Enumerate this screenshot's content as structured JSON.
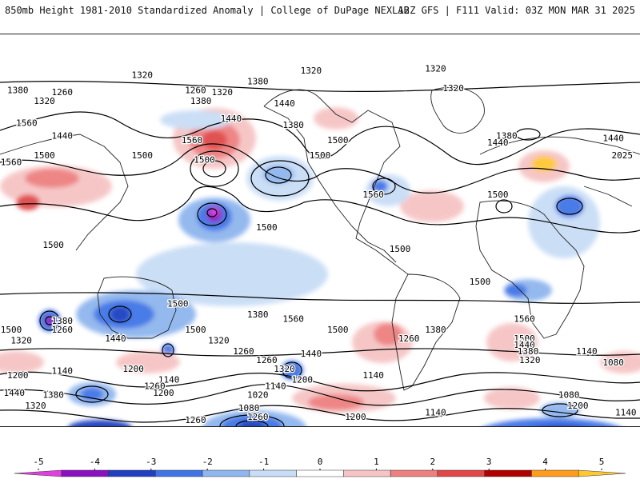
{
  "header": {
    "title_left": "850mb Height 1981-2010 Standardized Anomaly | College of DuPage NEXLAB",
    "title_right": "12Z GFS | F111 Valid: 03Z MON MAR 31 2025"
  },
  "colorbar": {
    "ticks": [
      "-5",
      "-4",
      "-3",
      "-2",
      "-1",
      "0",
      "1",
      "2",
      "3",
      "4",
      "5"
    ],
    "colors": [
      "#e040e0",
      "#8a10c0",
      "#1f3fc0",
      "#3f74e6",
      "#8fb6ee",
      "#c8ddf6",
      "#ffffff",
      "#f6c4c4",
      "#ee8080",
      "#e04848",
      "#b00000",
      "#ff9d1a",
      "#ffc830"
    ]
  },
  "contour_labels": [
    {
      "text": "1320",
      "lon": -5,
      "lat": 72
    },
    {
      "text": "1320",
      "lon": 65,
      "lat": 73
    },
    {
      "text": "1320",
      "lon": -100,
      "lat": 70
    },
    {
      "text": "1380",
      "lon": -170,
      "lat": 63
    },
    {
      "text": "1260",
      "lon": -145,
      "lat": 62
    },
    {
      "text": "1320",
      "lon": -155,
      "lat": 58
    },
    {
      "text": "1380",
      "lon": -35,
      "lat": 67
    },
    {
      "text": "1260",
      "lon": -70,
      "lat": 63
    },
    {
      "text": "1320",
      "lon": -55,
      "lat": 62
    },
    {
      "text": "1380",
      "lon": -67,
      "lat": 58
    },
    {
      "text": "1440",
      "lon": -20,
      "lat": 57
    },
    {
      "text": "1320",
      "lon": 75,
      "lat": 64
    },
    {
      "text": "1440",
      "lon": -50,
      "lat": 50
    },
    {
      "text": "1560",
      "lon": -165,
      "lat": 48
    },
    {
      "text": "1440",
      "lon": -145,
      "lat": 42
    },
    {
      "text": "1380",
      "lon": -15,
      "lat": 47
    },
    {
      "text": "1380",
      "lon": 105,
      "lat": 42
    },
    {
      "text": "1440",
      "lon": 100,
      "lat": 39
    },
    {
      "text": "1500",
      "lon": 10,
      "lat": 40
    },
    {
      "text": "1440",
      "lon": 165,
      "lat": 41
    },
    {
      "text": "1500",
      "lon": -155,
      "lat": 33
    },
    {
      "text": "1560",
      "lon": -175,
      "lat": 30
    },
    {
      "text": "1500",
      "lon": -100,
      "lat": 33
    },
    {
      "text": "1560",
      "lon": -72,
      "lat": 40
    },
    {
      "text": "1500",
      "lon": -65,
      "lat": 31
    },
    {
      "text": "1500",
      "lon": 0,
      "lat": 33
    },
    {
      "text": "2025",
      "lon": 170,
      "lat": 33
    },
    {
      "text": "1560",
      "lon": 30,
      "lat": 15
    },
    {
      "text": "1500",
      "lon": 100,
      "lat": 15
    },
    {
      "text": "1500",
      "lon": -30,
      "lat": 0
    },
    {
      "text": "1500",
      "lon": 45,
      "lat": -10
    },
    {
      "text": "1500",
      "lon": -150,
      "lat": -8
    },
    {
      "text": "1500",
      "lon": 90,
      "lat": -25
    },
    {
      "text": "1500",
      "lon": -80,
      "lat": -35
    },
    {
      "text": "1560",
      "lon": -15,
      "lat": -42
    },
    {
      "text": "1500",
      "lon": 10,
      "lat": -47
    },
    {
      "text": "1380",
      "lon": -35,
      "lat": -40
    },
    {
      "text": "1560",
      "lon": 115,
      "lat": -42
    },
    {
      "text": "1380",
      "lon": -145,
      "lat": -43
    },
    {
      "text": "1260",
      "lon": -145,
      "lat": -47
    },
    {
      "text": "1500",
      "lon": -175,
      "lat": -47
    },
    {
      "text": "1320",
      "lon": -168,
      "lat": -52
    },
    {
      "text": "1440",
      "lon": -115,
      "lat": -51
    },
    {
      "text": "1500",
      "lon": -70,
      "lat": -47
    },
    {
      "text": "1320",
      "lon": -57,
      "lat": -52
    },
    {
      "text": "1260",
      "lon": -43,
      "lat": -57
    },
    {
      "text": "1440",
      "lon": -5,
      "lat": -58
    },
    {
      "text": "1380",
      "lon": 65,
      "lat": -47
    },
    {
      "text": "1260",
      "lon": 50,
      "lat": -51
    },
    {
      "text": "1500",
      "lon": 115,
      "lat": -51
    },
    {
      "text": "1440",
      "lon": 115,
      "lat": -54
    },
    {
      "text": "1380",
      "lon": 117,
      "lat": -57
    },
    {
      "text": "1320",
      "lon": 118,
      "lat": -61
    },
    {
      "text": "1140",
      "lon": 150,
      "lat": -57
    },
    {
      "text": "1080",
      "lon": 165,
      "lat": -62
    },
    {
      "text": "1260",
      "lon": -30,
      "lat": -61
    },
    {
      "text": "1320",
      "lon": -20,
      "lat": -65
    },
    {
      "text": "1200",
      "lon": -105,
      "lat": -65
    },
    {
      "text": "1140",
      "lon": -145,
      "lat": -66
    },
    {
      "text": "1200",
      "lon": -170,
      "lat": -68
    },
    {
      "text": "1140",
      "lon": -85,
      "lat": -70
    },
    {
      "text": "1260",
      "lon": -93,
      "lat": -73
    },
    {
      "text": "1200",
      "lon": -88,
      "lat": -76
    },
    {
      "text": "1140",
      "lon": -25,
      "lat": -73
    },
    {
      "text": "1140",
      "lon": 30,
      "lat": -68
    },
    {
      "text": "1200",
      "lon": -10,
      "lat": -70
    },
    {
      "text": "1020",
      "lon": -35,
      "lat": -77
    },
    {
      "text": "1440",
      "lon": -172,
      "lat": -76
    },
    {
      "text": "1380",
      "lon": -150,
      "lat": -77
    },
    {
      "text": "1320",
      "lon": -160,
      "lat": -82
    },
    {
      "text": "1080",
      "lon": -40,
      "lat": -83
    },
    {
      "text": "1260",
      "lon": -35,
      "lat": -87
    },
    {
      "text": "1200",
      "lon": 20,
      "lat": -87
    },
    {
      "text": "1140",
      "lon": 65,
      "lat": -85
    },
    {
      "text": "1260",
      "lon": -70,
      "lat": -90
    },
    {
      "text": "1200",
      "lon": 145,
      "lat": -82
    },
    {
      "text": "1140",
      "lon": 172,
      "lat": -85
    },
    {
      "text": "1080",
      "lon": 140,
      "lat": -77
    }
  ]
}
